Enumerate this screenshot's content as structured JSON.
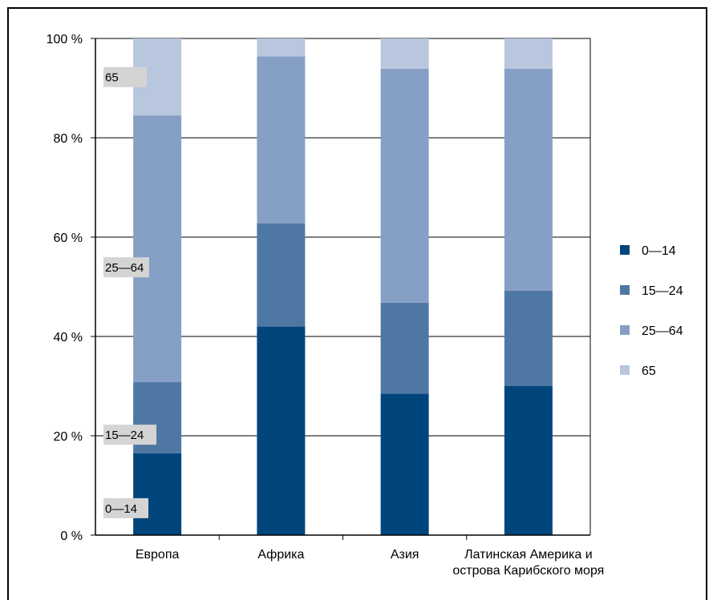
{
  "chart_data": {
    "type": "bar",
    "stacked": true,
    "categories": [
      "Европа",
      "Африка",
      "Азия",
      "Латинская Америка и острова Карибского моря"
    ],
    "category_lines": [
      [
        "Европа"
      ],
      [
        "Африка"
      ],
      [
        "Азия"
      ],
      [
        "Латинская Америка и",
        "острова Карибского моря"
      ]
    ],
    "series": [
      {
        "name": "0—14",
        "values": [
          16.5,
          42,
          28.5,
          30
        ],
        "color": "#00457c"
      },
      {
        "name": "15—24",
        "values": [
          14.3,
          20.8,
          18.3,
          19.2
        ],
        "color": "#4f77a4"
      },
      {
        "name": "25—64",
        "values": [
          53.7,
          33.6,
          47.1,
          44.7
        ],
        "color": "#869fc5"
      },
      {
        "name": "65",
        "values": [
          15.5,
          3.6,
          6.1,
          6.1
        ],
        "color": "#b8c6de"
      }
    ],
    "yticks": [
      "0 %",
      "20 %",
      "40 %",
      "60 %",
      "80 %",
      "100 %"
    ],
    "ylim": [
      0,
      100
    ],
    "grid": true,
    "legend_placement": "right",
    "annotations": [
      "65",
      "25—64",
      "15—24",
      "0—14"
    ]
  }
}
